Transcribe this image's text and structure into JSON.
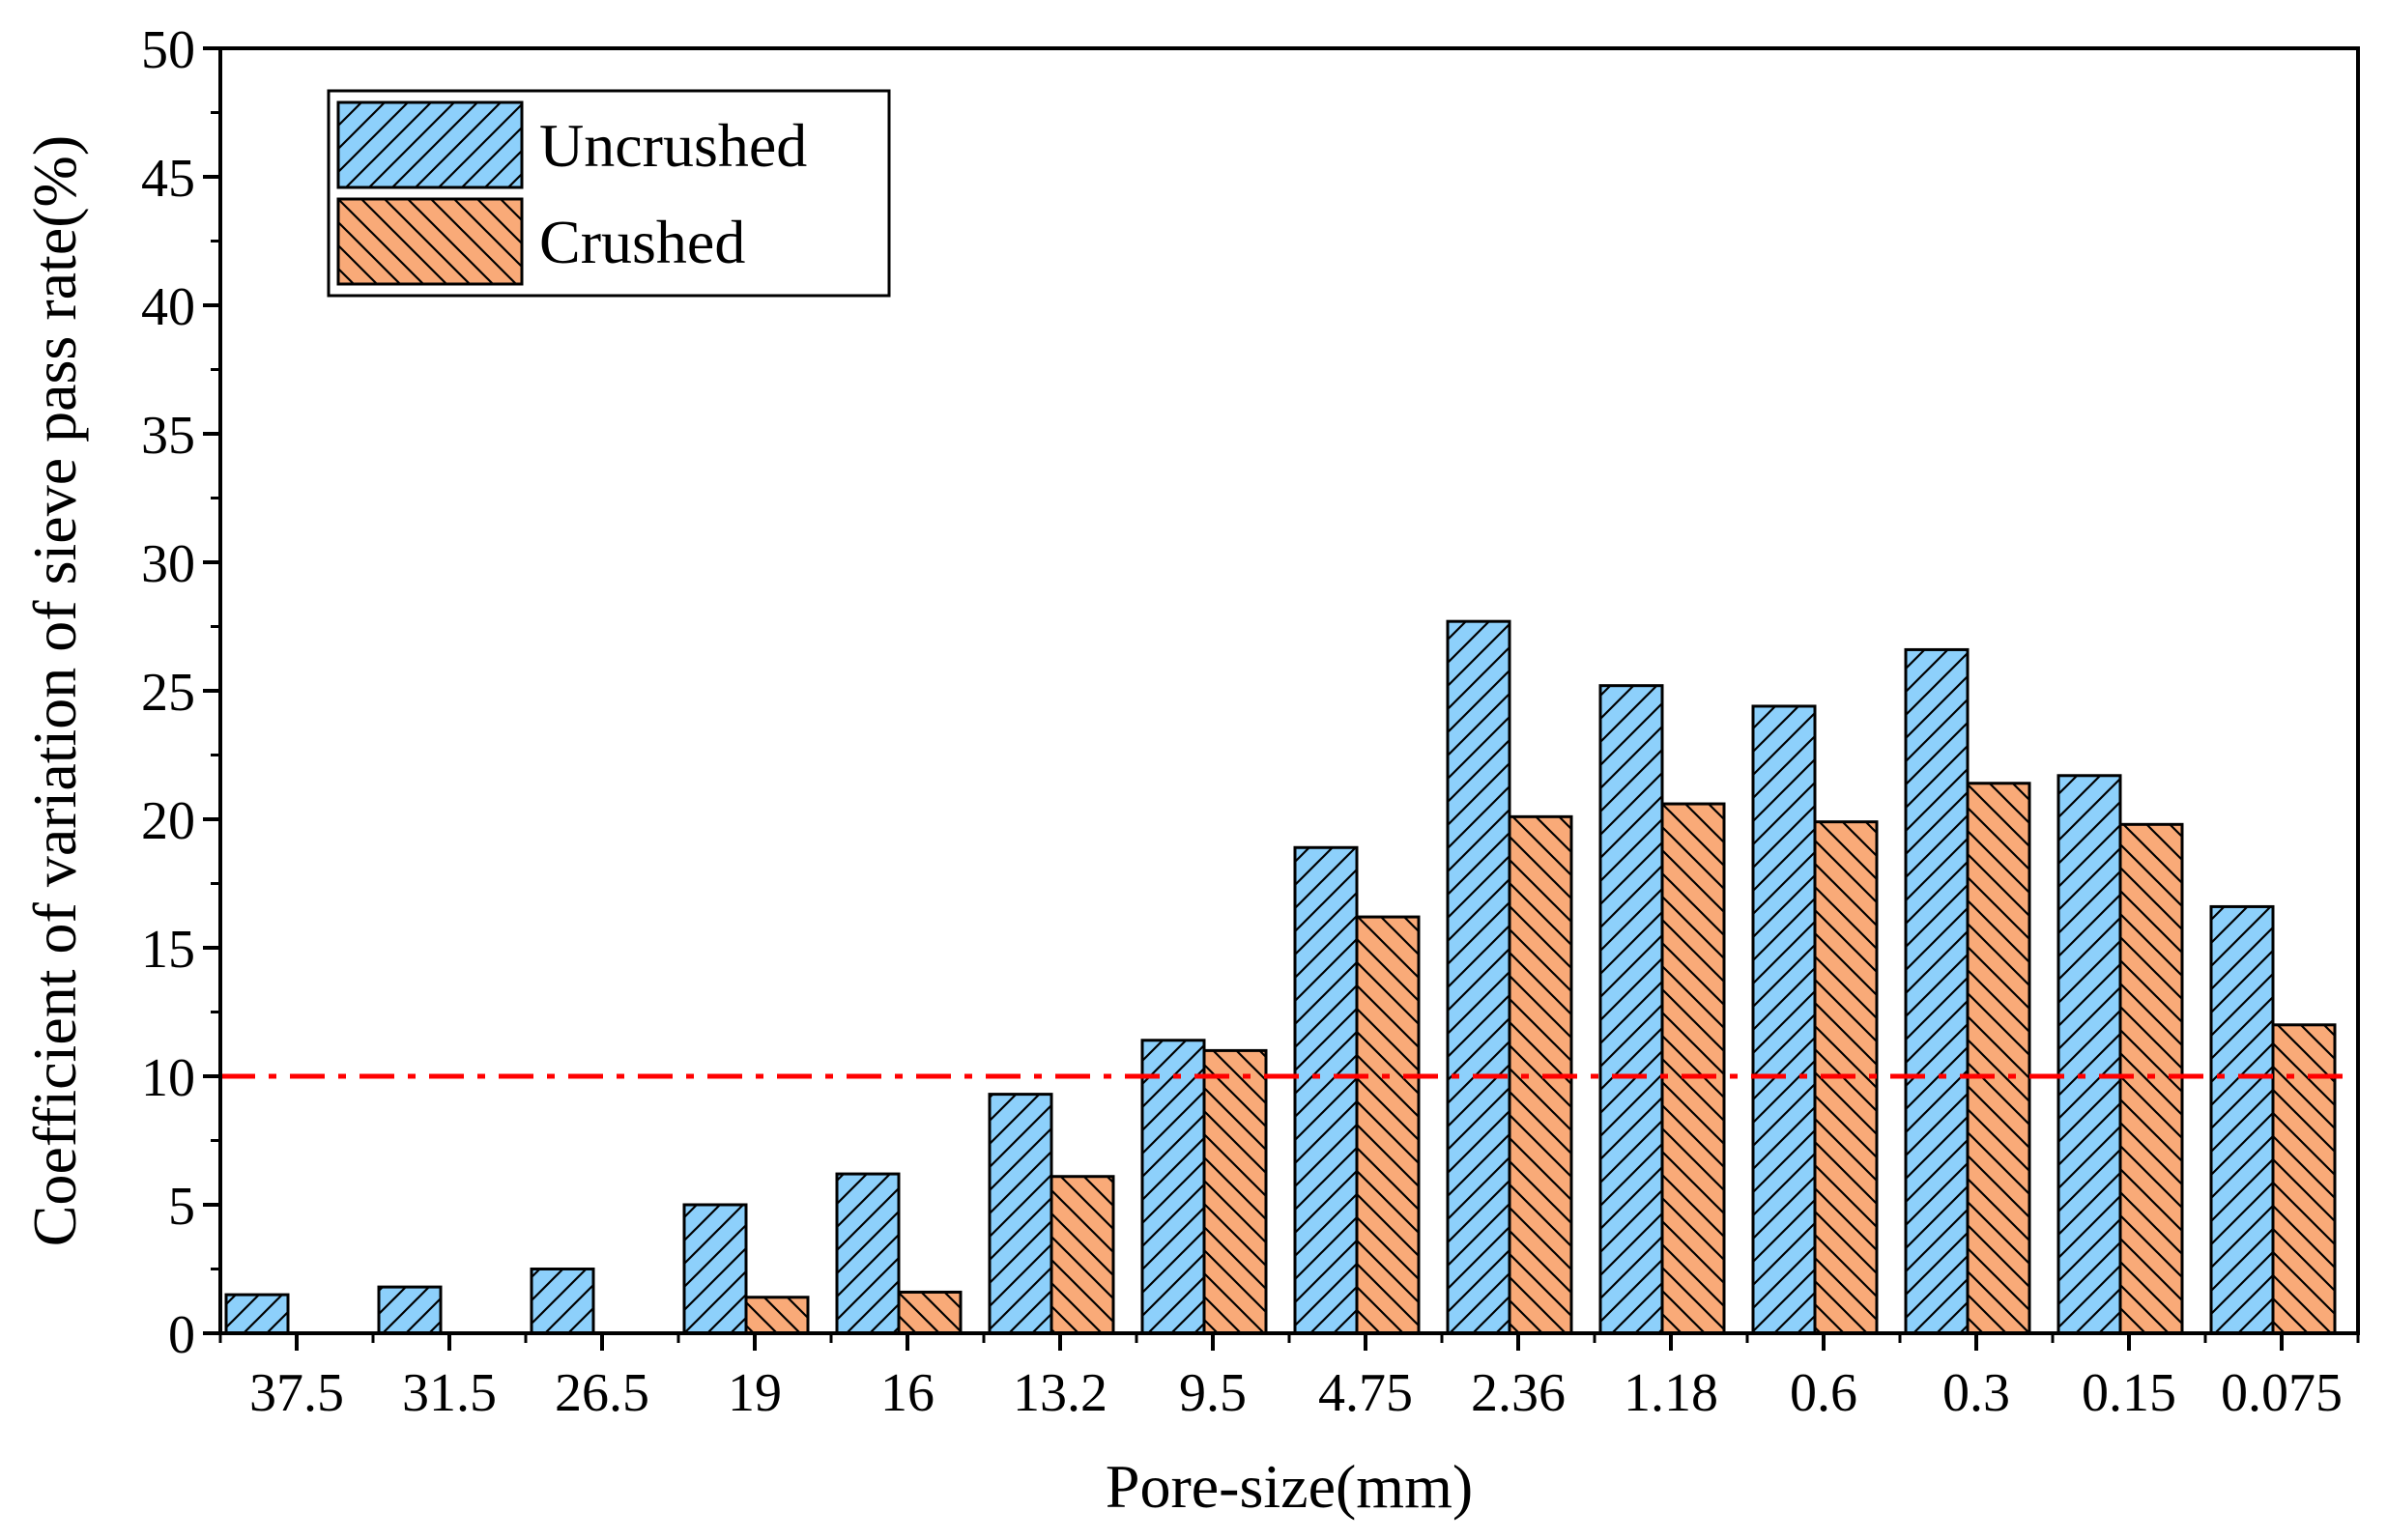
{
  "chart_data": {
    "type": "bar",
    "title": "",
    "xlabel": "Pore-size(mm)",
    "ylabel": "Coefficient of variation of sieve pass rate(%)",
    "categories": [
      "37.5",
      "31.5",
      "26.5",
      "19",
      "16",
      "13.2",
      "9.5",
      "4.75",
      "2.36",
      "1.18",
      "0.6",
      "0.3",
      "0.15",
      "0.075"
    ],
    "series": [
      {
        "name": "Uncrushed",
        "color": "#8dd0fb",
        "hatch": "forward-diagonal",
        "values": [
          1.5,
          1.8,
          2.5,
          5.0,
          6.2,
          9.3,
          11.4,
          18.9,
          27.7,
          25.2,
          24.4,
          26.6,
          21.7,
          16.6
        ]
      },
      {
        "name": "Crushed",
        "color": "#f9aa78",
        "hatch": "back-diagonal",
        "values": [
          0,
          0,
          0,
          1.4,
          1.6,
          6.1,
          11.0,
          16.2,
          20.1,
          20.6,
          19.9,
          21.4,
          19.8,
          12.0
        ]
      }
    ],
    "yticks": [
      0,
      5,
      10,
      15,
      20,
      25,
      30,
      35,
      40,
      45,
      50
    ],
    "ylim": [
      0,
      50
    ],
    "reference_line": {
      "value": 10,
      "color": "#ff0000",
      "style": "dash-dot"
    },
    "legend": {
      "position": "top-left"
    },
    "grid": false
  }
}
